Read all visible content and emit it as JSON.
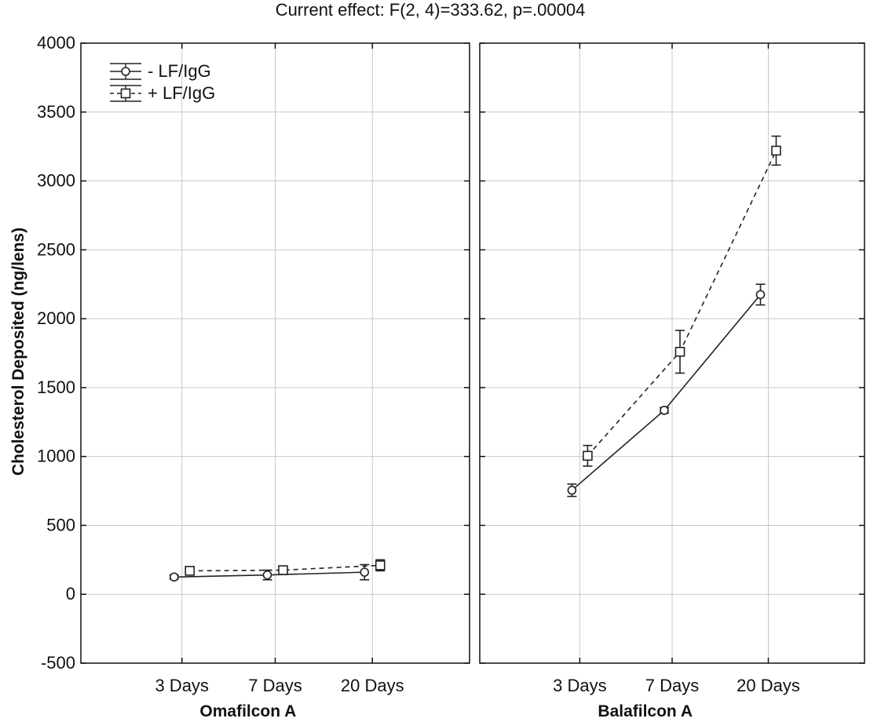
{
  "chart_data": {
    "type": "line",
    "title": "Current effect: F(2, 4)=333.62, p=.00004",
    "ylabel": "Cholesterol Deposited (ng/lens)",
    "ylim": [
      -500,
      4000
    ],
    "yticks": [
      -500,
      0,
      500,
      1000,
      1500,
      2000,
      2500,
      3000,
      3500,
      4000
    ],
    "grid": true,
    "legend_placement": "top-left",
    "categories": [
      "3 Days",
      "7 Days",
      "20 Days"
    ],
    "series_styles": [
      {
        "name": "- LF/IgG",
        "marker": "circle",
        "dash": "solid"
      },
      {
        "name": "+ LF/IgG",
        "marker": "square",
        "dash": "dashed"
      }
    ],
    "panels": [
      {
        "xlabel": "Omafilcon A",
        "series": [
          {
            "name": "- LF/IgG",
            "values": [
              125,
              140,
              160
            ],
            "err": [
              15,
              35,
              55
            ]
          },
          {
            "name": "+ LF/IgG",
            "values": [
              170,
              175,
              210
            ],
            "err": [
              15,
              15,
              40
            ]
          }
        ]
      },
      {
        "xlabel": "Balafilcon A",
        "series": [
          {
            "name": "- LF/IgG",
            "values": [
              755,
              1335,
              2175
            ],
            "err": [
              45,
              20,
              75
            ]
          },
          {
            "name": "+ LF/IgG",
            "values": [
              1005,
              1760,
              3220
            ],
            "err": [
              75,
              155,
              105
            ]
          }
        ]
      }
    ]
  }
}
